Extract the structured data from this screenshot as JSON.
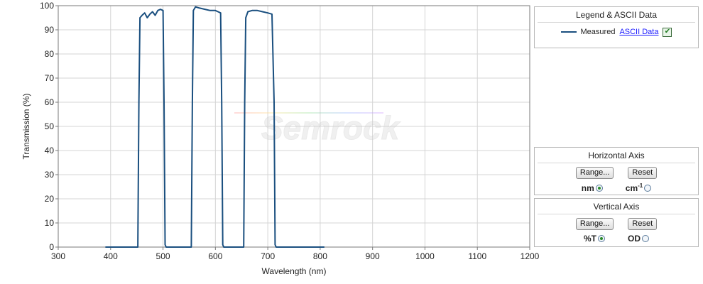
{
  "chart_data": {
    "type": "line",
    "xlabel": "Wavelength (nm)",
    "ylabel": "Transmission (%)",
    "xlim": [
      300,
      1200
    ],
    "ylim": [
      0,
      100
    ],
    "xticks": [
      300,
      400,
      500,
      600,
      700,
      800,
      900,
      1000,
      1100,
      1200
    ],
    "yticks": [
      0,
      10,
      20,
      30,
      40,
      50,
      60,
      70,
      80,
      90,
      100
    ],
    "grid": true,
    "series": [
      {
        "name": "Measured",
        "color": "#1a4f7f",
        "x": [
          390,
          452,
          454,
          456,
          460,
          465,
          470,
          475,
          480,
          485,
          490,
          495,
          500,
          502,
          504,
          506,
          554,
          556,
          558,
          562,
          570,
          580,
          590,
          600,
          605,
          610,
          612,
          614,
          616,
          654,
          656,
          658,
          662,
          670,
          680,
          690,
          700,
          708,
          712,
          714,
          716,
          808
        ],
        "y": [
          0,
          0,
          60,
          95,
          96,
          97,
          95,
          96.5,
          97.5,
          96,
          98,
          98.5,
          98,
          60,
          1,
          0,
          0,
          60,
          98,
          99.5,
          99,
          98.5,
          98,
          98,
          97.5,
          97,
          60,
          1,
          0,
          0,
          60,
          95,
          97.5,
          98,
          98,
          97.5,
          97,
          96.5,
          60,
          1,
          0,
          0
        ]
      }
    ],
    "watermark": "Semrock"
  },
  "legend_panel": {
    "title": "Legend & ASCII Data",
    "series_label": "Measured",
    "ascii_link": "ASCII Data",
    "checked": true
  },
  "horizontal_axis": {
    "title": "Horizontal Axis",
    "range_button": "Range...",
    "reset_button": "Reset",
    "option1": "nm",
    "option2_base": "cm",
    "option2_sup": "-1",
    "selected": "nm"
  },
  "vertical_axis": {
    "title": "Vertical  Axis",
    "range_button": "Range...",
    "reset_button": "Reset",
    "option1": "%T",
    "option2": "OD",
    "selected": "%T"
  }
}
